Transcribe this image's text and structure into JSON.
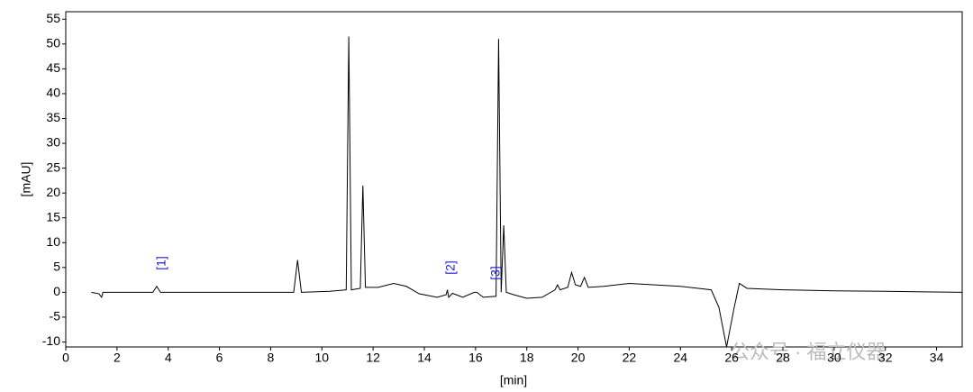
{
  "chart_data": {
    "type": "line",
    "x_label": "[min]",
    "y_label": "[mAU]",
    "x": [
      1.0,
      1.3,
      1.4,
      1.45,
      3.4,
      3.55,
      3.7,
      8.9,
      9.05,
      9.2,
      10.3,
      10.95,
      11.05,
      11.15,
      11.5,
      11.6,
      11.7,
      12.2,
      12.8,
      13.3,
      13.8,
      14.5,
      14.85,
      14.9,
      14.95,
      15.1,
      15.5,
      15.95,
      16.05,
      16.3,
      16.8,
      16.9,
      17.0,
      17.1,
      17.2,
      17.5,
      18.0,
      18.6,
      19.1,
      19.2,
      19.3,
      19.6,
      19.75,
      19.9,
      20.1,
      20.25,
      20.4,
      21.0,
      22.0,
      23.0,
      24.0,
      25.2,
      25.5,
      25.8,
      26.1,
      26.3,
      26.6,
      28.0,
      30.0,
      32.0,
      35.0
    ],
    "values": [
      0,
      -0.3,
      -1.0,
      0,
      0,
      1.2,
      0,
      0,
      6.5,
      0,
      0.2,
      0.5,
      51.5,
      0.5,
      0.8,
      21.5,
      1.0,
      1.0,
      1.8,
      1.2,
      -0.3,
      -1.0,
      -0.5,
      0.5,
      -1.0,
      -0.2,
      -1.0,
      0,
      0,
      -1.0,
      -0.8,
      51,
      0,
      13.5,
      0,
      -0.5,
      -1.2,
      -1.0,
      0.5,
      1.5,
      0.5,
      1.0,
      4.0,
      1.5,
      1.2,
      3.0,
      1.0,
      1.2,
      1.8,
      1.5,
      1.2,
      0.5,
      -3.0,
      -11.0,
      -3.0,
      1.8,
      0.8,
      0.5,
      0.3,
      0.2,
      0
    ],
    "color": "#000000",
    "xlim": [
      0,
      35
    ],
    "ylim": [
      -11,
      56.5
    ],
    "xticks": [
      0,
      2,
      4,
      6,
      8,
      10,
      12,
      14,
      16,
      18,
      20,
      22,
      24,
      26,
      28,
      30,
      32,
      34
    ],
    "yticks": [
      -10,
      -5,
      0,
      5,
      10,
      15,
      20,
      25,
      30,
      35,
      40,
      45,
      50,
      55
    ],
    "annotations": [
      {
        "label": "[1]",
        "x": 3.75
      },
      {
        "label": "[2]",
        "x": 15.05
      },
      {
        "label": "[3]",
        "x": 16.8
      }
    ],
    "annotation_color": "#1a1ad6",
    "watermark": "公众号 · 福立仪器"
  }
}
